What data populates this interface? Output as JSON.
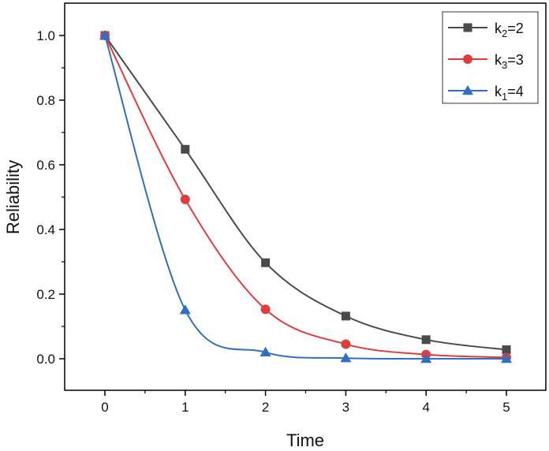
{
  "chart_data": {
    "type": "line",
    "xlabel": "Time",
    "ylabel": "Reliability",
    "xlim": [
      -0.5,
      5.5
    ],
    "ylim": [
      -0.1,
      1.1
    ],
    "xticks": [
      "0",
      "1",
      "2",
      "3",
      "4",
      "5"
    ],
    "yticks": [
      "0.0",
      "0.2",
      "0.4",
      "0.6",
      "0.8",
      "1.0"
    ],
    "grid": false,
    "legend_position": "top-right",
    "series": [
      {
        "name_base": "k",
        "name_sub": "2",
        "name_rest": "=2",
        "marker": "square",
        "color": "#4a4a4a",
        "x": [
          0,
          1,
          2,
          3,
          4,
          5
        ],
        "values": [
          1.0,
          0.648,
          0.297,
          0.132,
          0.059,
          0.028
        ]
      },
      {
        "name_base": "k",
        "name_sub": "3",
        "name_rest": "=3",
        "marker": "circle",
        "color": "#e03c3c",
        "x": [
          0,
          1,
          2,
          3,
          4,
          5
        ],
        "values": [
          1.0,
          0.493,
          0.153,
          0.045,
          0.013,
          0.004
        ]
      },
      {
        "name_base": "k",
        "name_sub": "1",
        "name_rest": "=4",
        "marker": "triangle",
        "color": "#2f6fc4",
        "x": [
          0,
          1,
          2,
          3,
          4,
          5
        ],
        "values": [
          1.0,
          0.151,
          0.02,
          0.002,
          0.0,
          0.0
        ]
      }
    ]
  }
}
